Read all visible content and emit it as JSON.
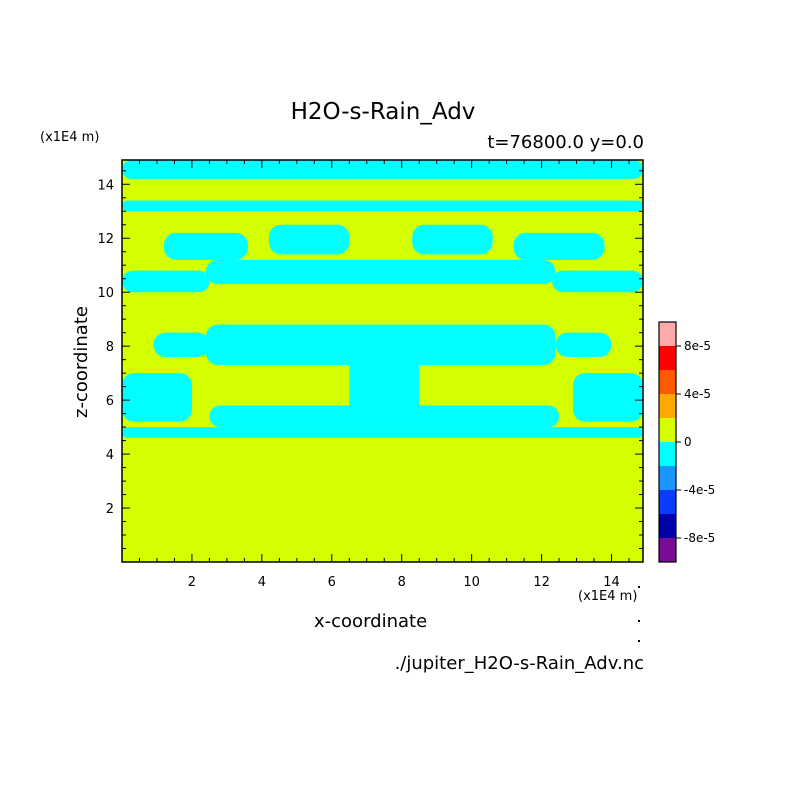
{
  "chart_data": {
    "type": "heatmap",
    "title": "H2O-s-Rain_Adv",
    "subtitle": "t=76800.0 y=0.0",
    "xlabel": "x-coordinate",
    "ylabel": "z-coordinate",
    "x_unit": "(x1E4 m)",
    "y_unit": "(x1E4 m)",
    "xlim": [
      0,
      14.9
    ],
    "ylim": [
      0,
      14.9
    ],
    "x_ticks": [
      2,
      4,
      6,
      8,
      10,
      12,
      14
    ],
    "y_ticks": [
      2,
      4,
      6,
      8,
      10,
      12,
      14
    ],
    "footer": "./jupiter_H2O-s-Rain_Adv.nc",
    "colorbar": {
      "tick_labels": [
        "8e-5",
        "4e-5",
        "0",
        "-4e-5",
        "-8e-5"
      ],
      "tick_values": [
        8e-05,
        4e-05,
        0,
        -4e-05,
        -8e-05
      ],
      "levels": [
        {
          "range": [
            -0.0001,
            -8e-05
          ],
          "color": "#7a0b96"
        },
        {
          "range": [
            -8e-05,
            -6e-05
          ],
          "color": "#0000a8"
        },
        {
          "range": [
            -6e-05,
            -4e-05
          ],
          "color": "#0a3cff"
        },
        {
          "range": [
            -4e-05,
            -2e-05
          ],
          "color": "#1a96ff"
        },
        {
          "range": [
            -2e-05,
            0
          ],
          "color": "#00ffff"
        },
        {
          "range": [
            0,
            2e-05
          ],
          "color": "#d4ff00"
        },
        {
          "range": [
            2e-05,
            4e-05
          ],
          "color": "#ffa800"
        },
        {
          "range": [
            4e-05,
            6e-05
          ],
          "color": "#ff5a00"
        },
        {
          "range": [
            6e-05,
            8e-05
          ],
          "color": "#ff0000"
        },
        {
          "range": [
            8e-05,
            0.0001
          ],
          "color": "#ffaaaa"
        }
      ]
    },
    "field": {
      "background_color": "#d4ff00",
      "negative_color": "#00ffff",
      "negative_regions": [
        {
          "x": [
            0.0,
            14.9
          ],
          "z": [
            14.2,
            14.9
          ]
        },
        {
          "x": [
            0.0,
            14.9
          ],
          "z": [
            13.0,
            13.4
          ]
        },
        {
          "x": [
            0.0,
            2.5
          ],
          "z": [
            10.0,
            10.8
          ]
        },
        {
          "x": [
            12.3,
            14.9
          ],
          "z": [
            10.0,
            10.8
          ]
        },
        {
          "x": [
            2.4,
            12.4
          ],
          "z": [
            10.3,
            11.2
          ]
        },
        {
          "x": [
            1.2,
            3.6
          ],
          "z": [
            11.2,
            12.2
          ]
        },
        {
          "x": [
            11.2,
            13.8
          ],
          "z": [
            11.2,
            12.2
          ]
        },
        {
          "x": [
            4.2,
            6.5
          ],
          "z": [
            11.4,
            12.5
          ]
        },
        {
          "x": [
            8.3,
            10.6
          ],
          "z": [
            11.4,
            12.5
          ]
        },
        {
          "x": [
            2.4,
            12.4
          ],
          "z": [
            7.3,
            8.8
          ]
        },
        {
          "x": [
            6.5,
            8.5
          ],
          "z": [
            5.3,
            7.6
          ]
        },
        {
          "x": [
            0.0,
            2.0
          ],
          "z": [
            5.2,
            7.0
          ]
        },
        {
          "x": [
            12.9,
            14.9
          ],
          "z": [
            5.2,
            7.0
          ]
        },
        {
          "x": [
            0.0,
            14.9
          ],
          "z": [
            4.6,
            5.0
          ]
        },
        {
          "x": [
            2.5,
            12.5
          ],
          "z": [
            5.0,
            5.8
          ]
        },
        {
          "x": [
            0.9,
            2.5
          ],
          "z": [
            7.6,
            8.5
          ]
        },
        {
          "x": [
            12.4,
            14.0
          ],
          "z": [
            7.6,
            8.5
          ]
        }
      ]
    }
  }
}
